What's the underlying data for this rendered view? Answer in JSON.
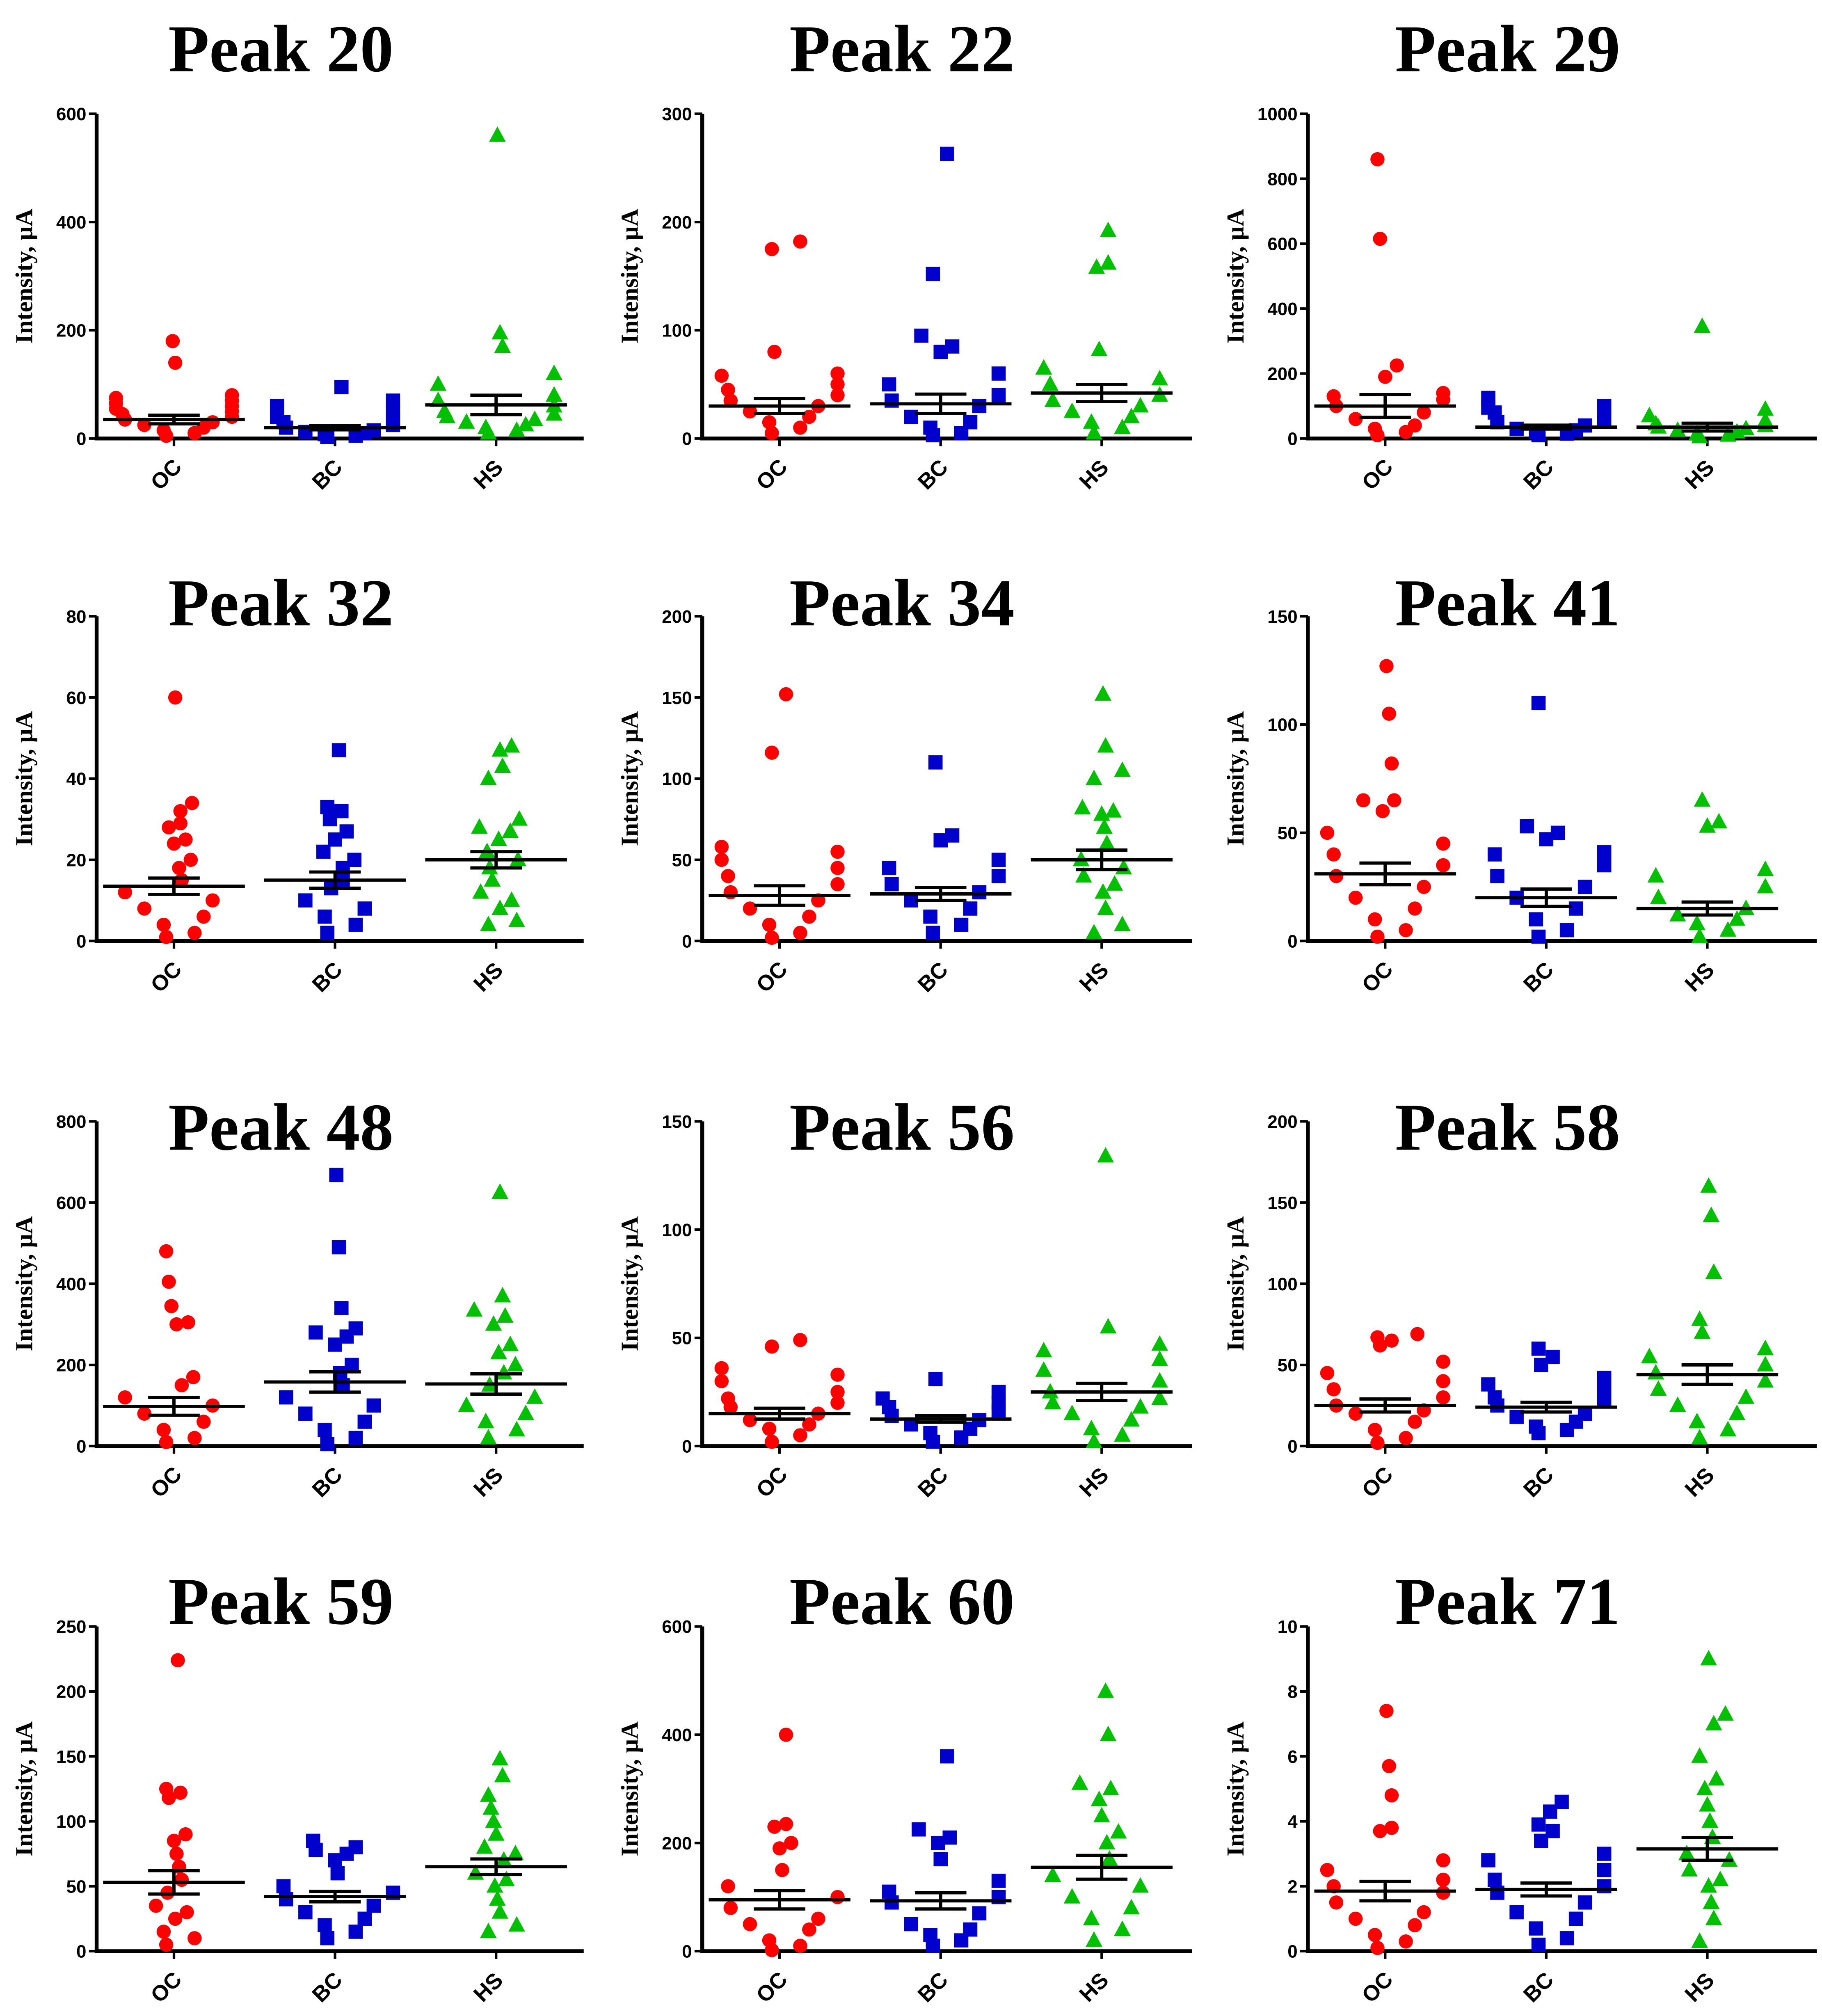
{
  "colors": {
    "OC": "#ff0000",
    "BC": "#0000cc",
    "HS": "#00c000"
  },
  "chart_data": [
    {
      "type": "scatter",
      "title": "Peak 20",
      "ylabel": "Intensity, μA",
      "categories": [
        "OC",
        "BC",
        "HS"
      ],
      "ylim": [
        0,
        600
      ],
      "yticks": [
        0,
        200,
        400,
        600
      ],
      "series": [
        {
          "name": "OC",
          "marker": "circle",
          "mean": 35,
          "sem": 8,
          "values": [
            180,
            140,
            80,
            75,
            70,
            65,
            60,
            55,
            50,
            45,
            40,
            35,
            30,
            25,
            20,
            15,
            10,
            5
          ]
        },
        {
          "name": "BC",
          "marker": "square",
          "mean": 20,
          "sem": 4,
          "values": [
            95,
            70,
            60,
            50,
            40,
            35,
            30,
            25,
            20,
            15,
            12,
            10,
            8,
            5,
            3
          ]
        },
        {
          "name": "HS",
          "marker": "triangle",
          "mean": 62,
          "sem": 18,
          "values": [
            560,
            195,
            170,
            120,
            100,
            80,
            70,
            60,
            50,
            45,
            40,
            35,
            30,
            25,
            20,
            15,
            10
          ]
        }
      ]
    },
    {
      "type": "scatter",
      "title": "Peak 22",
      "ylabel": "Intensity, μA",
      "categories": [
        "OC",
        "BC",
        "HS"
      ],
      "ylim": [
        0,
        300
      ],
      "yticks": [
        0,
        100,
        200,
        300
      ],
      "series": [
        {
          "name": "OC",
          "marker": "circle",
          "mean": 30,
          "sem": 7,
          "values": [
            182,
            175,
            80,
            60,
            58,
            50,
            45,
            40,
            35,
            30,
            25,
            20,
            15,
            10,
            5
          ]
        },
        {
          "name": "BC",
          "marker": "square",
          "mean": 32,
          "sem": 9,
          "values": [
            263,
            152,
            95,
            85,
            80,
            60,
            50,
            40,
            35,
            30,
            20,
            15,
            10,
            5,
            3
          ]
        },
        {
          "name": "HS",
          "marker": "triangle",
          "mean": 42,
          "sem": 8,
          "values": [
            192,
            162,
            158,
            82,
            65,
            55,
            50,
            40,
            35,
            30,
            25,
            20,
            15,
            10,
            5
          ]
        }
      ]
    },
    {
      "type": "scatter",
      "title": "Peak 29",
      "ylabel": "Intensity, μA",
      "categories": [
        "OC",
        "BC",
        "HS"
      ],
      "ylim": [
        0,
        1000
      ],
      "yticks": [
        0,
        200,
        400,
        600,
        800,
        1000
      ],
      "series": [
        {
          "name": "OC",
          "marker": "circle",
          "mean": 100,
          "sem": 35,
          "values": [
            860,
            615,
            225,
            190,
            140,
            130,
            120,
            100,
            80,
            60,
            40,
            30,
            20,
            10
          ]
        },
        {
          "name": "BC",
          "marker": "square",
          "mean": 35,
          "sem": 6,
          "values": [
            125,
            100,
            95,
            90,
            80,
            60,
            50,
            40,
            30,
            25,
            20,
            15,
            10
          ]
        },
        {
          "name": "HS",
          "marker": "triangle",
          "mean": 35,
          "sem": 12,
          "values": [
            345,
            90,
            70,
            55,
            45,
            40,
            35,
            30,
            25,
            20,
            15,
            10,
            5
          ]
        }
      ]
    },
    {
      "type": "scatter",
      "title": "Peak 32",
      "ylabel": "Intensity, μA",
      "categories": [
        "OC",
        "BC",
        "HS"
      ],
      "ylim": [
        0,
        80
      ],
      "yticks": [
        0,
        20,
        40,
        60,
        80
      ],
      "series": [
        {
          "name": "OC",
          "marker": "circle",
          "mean": 13.5,
          "sem": 2,
          "values": [
            60,
            34,
            32,
            29,
            28,
            25,
            24,
            20,
            18,
            15,
            12,
            10,
            8,
            6,
            4,
            2,
            1
          ]
        },
        {
          "name": "BC",
          "marker": "square",
          "mean": 15,
          "sem": 2,
          "values": [
            47,
            33,
            32,
            30,
            27,
            25,
            22,
            20,
            18,
            15,
            13,
            10,
            8,
            6,
            4,
            2
          ]
        },
        {
          "name": "HS",
          "marker": "triangle",
          "mean": 20,
          "sem": 2,
          "values": [
            48,
            47,
            43,
            40,
            30,
            28,
            27,
            25,
            22,
            20,
            18,
            15,
            12,
            10,
            8,
            5,
            4
          ]
        }
      ]
    },
    {
      "type": "scatter",
      "title": "Peak 34",
      "ylabel": "Intensity, μA",
      "categories": [
        "OC",
        "BC",
        "HS"
      ],
      "ylim": [
        0,
        200
      ],
      "yticks": [
        0,
        50,
        100,
        150,
        200
      ],
      "series": [
        {
          "name": "OC",
          "marker": "circle",
          "mean": 28,
          "sem": 6,
          "values": [
            152,
            116,
            58,
            55,
            50,
            45,
            40,
            35,
            30,
            25,
            20,
            15,
            10,
            5,
            2
          ]
        },
        {
          "name": "BC",
          "marker": "square",
          "mean": 29,
          "sem": 4,
          "values": [
            110,
            65,
            62,
            50,
            45,
            40,
            35,
            30,
            25,
            20,
            15,
            10,
            5
          ]
        },
        {
          "name": "HS",
          "marker": "triangle",
          "mean": 50,
          "sem": 6,
          "values": [
            152,
            120,
            105,
            100,
            82,
            80,
            78,
            70,
            60,
            50,
            45,
            40,
            35,
            30,
            20,
            10,
            5
          ]
        }
      ]
    },
    {
      "type": "scatter",
      "title": "Peak 41",
      "ylabel": "Intensity, μA",
      "categories": [
        "OC",
        "BC",
        "HS"
      ],
      "ylim": [
        0,
        150
      ],
      "yticks": [
        0,
        50,
        100,
        150
      ],
      "series": [
        {
          "name": "OC",
          "marker": "circle",
          "mean": 31,
          "sem": 5,
          "values": [
            127,
            105,
            82,
            65,
            65,
            60,
            50,
            45,
            40,
            35,
            30,
            25,
            20,
            15,
            10,
            5,
            2
          ]
        },
        {
          "name": "BC",
          "marker": "square",
          "mean": 20,
          "sem": 4,
          "values": [
            110,
            53,
            50,
            47,
            41,
            40,
            35,
            30,
            25,
            20,
            15,
            10,
            5,
            2
          ]
        },
        {
          "name": "HS",
          "marker": "triangle",
          "mean": 15,
          "sem": 3,
          "values": [
            65,
            55,
            53,
            33,
            30,
            25,
            20,
            15,
            12,
            10,
            8,
            5,
            2
          ]
        }
      ]
    },
    {
      "type": "scatter",
      "title": "Peak 48",
      "ylabel": "Intensity, μA",
      "categories": [
        "OC",
        "BC",
        "HS"
      ],
      "ylim": [
        0,
        800
      ],
      "yticks": [
        0,
        200,
        400,
        600,
        800
      ],
      "series": [
        {
          "name": "OC",
          "marker": "circle",
          "mean": 98,
          "sem": 22,
          "values": [
            480,
            405,
            345,
            305,
            300,
            170,
            150,
            120,
            100,
            80,
            60,
            40,
            20,
            10
          ]
        },
        {
          "name": "BC",
          "marker": "square",
          "mean": 158,
          "sem": 25,
          "values": [
            668,
            490,
            340,
            290,
            280,
            270,
            250,
            200,
            180,
            150,
            120,
            100,
            80,
            60,
            40,
            20,
            5
          ]
        },
        {
          "name": "HS",
          "marker": "triangle",
          "mean": 153,
          "sem": 25,
          "values": [
            625,
            370,
            335,
            320,
            300,
            250,
            230,
            200,
            180,
            150,
            120,
            100,
            80,
            60,
            40,
            20
          ]
        }
      ]
    },
    {
      "type": "scatter",
      "title": "Peak 56",
      "ylabel": "Intensity, μA",
      "categories": [
        "OC",
        "BC",
        "HS"
      ],
      "ylim": [
        0,
        150
      ],
      "yticks": [
        0,
        50,
        100,
        150
      ],
      "series": [
        {
          "name": "OC",
          "marker": "circle",
          "mean": 15,
          "sem": 2.5,
          "values": [
            49,
            46,
            36,
            33,
            30,
            25,
            22,
            20,
            18,
            15,
            12,
            10,
            8,
            5,
            2
          ]
        },
        {
          "name": "BC",
          "marker": "square",
          "mean": 12.5,
          "sem": 1.5,
          "values": [
            31,
            25,
            22,
            20,
            18,
            16,
            14,
            12,
            10,
            8,
            6,
            4,
            2
          ]
        },
        {
          "name": "HS",
          "marker": "triangle",
          "mean": 25,
          "sem": 4,
          "values": [
            134,
            55,
            47,
            44,
            40,
            35,
            30,
            25,
            22,
            20,
            18,
            15,
            12,
            8,
            5,
            2
          ]
        }
      ]
    },
    {
      "type": "scatter",
      "title": "Peak 58",
      "ylabel": "Intensity, μA",
      "categories": [
        "OC",
        "BC",
        "HS"
      ],
      "ylim": [
        0,
        200
      ],
      "yticks": [
        0,
        50,
        100,
        150,
        200
      ],
      "series": [
        {
          "name": "OC",
          "marker": "circle",
          "mean": 25,
          "sem": 4,
          "values": [
            69,
            67,
            65,
            62,
            52,
            45,
            40,
            35,
            30,
            25,
            22,
            20,
            15,
            10,
            5,
            2
          ]
        },
        {
          "name": "BC",
          "marker": "square",
          "mean": 24,
          "sem": 3,
          "values": [
            60,
            55,
            50,
            42,
            38,
            35,
            30,
            28,
            25,
            20,
            18,
            15,
            12,
            10,
            8
          ]
        },
        {
          "name": "HS",
          "marker": "triangle",
          "mean": 44,
          "sem": 6,
          "values": [
            160,
            142,
            107,
            78,
            70,
            60,
            55,
            50,
            45,
            40,
            35,
            30,
            25,
            20,
            15,
            10,
            5
          ]
        }
      ]
    },
    {
      "type": "scatter",
      "title": "Peak 59",
      "ylabel": "Intensity, μA",
      "categories": [
        "OC",
        "BC",
        "HS"
      ],
      "ylim": [
        0,
        250
      ],
      "yticks": [
        0,
        50,
        100,
        150,
        200,
        250
      ],
      "series": [
        {
          "name": "OC",
          "marker": "circle",
          "mean": 53,
          "sem": 9,
          "values": [
            224,
            125,
            122,
            118,
            90,
            85,
            75,
            65,
            55,
            45,
            35,
            30,
            25,
            15,
            10,
            5
          ]
        },
        {
          "name": "BC",
          "marker": "square",
          "mean": 42,
          "sem": 4,
          "values": [
            85,
            80,
            78,
            75,
            70,
            60,
            50,
            45,
            40,
            35,
            30,
            25,
            20,
            15,
            10
          ]
        },
        {
          "name": "HS",
          "marker": "triangle",
          "mean": 65,
          "sem": 6,
          "values": [
            148,
            135,
            120,
            110,
            100,
            90,
            80,
            75,
            70,
            60,
            55,
            50,
            40,
            30,
            20,
            15
          ]
        }
      ]
    },
    {
      "type": "scatter",
      "title": "Peak 60",
      "ylabel": "Intensity, μA",
      "categories": [
        "OC",
        "BC",
        "HS"
      ],
      "ylim": [
        0,
        600
      ],
      "yticks": [
        0,
        200,
        400,
        600
      ],
      "series": [
        {
          "name": "OC",
          "marker": "circle",
          "mean": 95,
          "sem": 17,
          "values": [
            400,
            235,
            230,
            200,
            190,
            150,
            120,
            100,
            80,
            60,
            50,
            40,
            20,
            10,
            2
          ]
        },
        {
          "name": "BC",
          "marker": "square",
          "mean": 93,
          "sem": 15,
          "values": [
            360,
            225,
            210,
            200,
            170,
            130,
            110,
            100,
            90,
            70,
            50,
            40,
            30,
            20,
            10
          ]
        },
        {
          "name": "HS",
          "marker": "triangle",
          "mean": 155,
          "sem": 22,
          "values": [
            480,
            400,
            310,
            300,
            280,
            250,
            220,
            200,
            170,
            140,
            120,
            100,
            80,
            60,
            40,
            20
          ]
        }
      ]
    },
    {
      "type": "scatter",
      "title": "Peak 71",
      "ylabel": "Intensity, μA",
      "categories": [
        "OC",
        "BC",
        "HS"
      ],
      "ylim": [
        0,
        10
      ],
      "yticks": [
        0,
        2,
        4,
        6,
        8,
        10
      ],
      "series": [
        {
          "name": "OC",
          "marker": "circle",
          "mean": 1.85,
          "sem": 0.3,
          "values": [
            7.4,
            5.7,
            4.8,
            3.8,
            3.7,
            2.8,
            2.5,
            2.2,
            2,
            1.8,
            1.5,
            1.2,
            1,
            0.8,
            0.5,
            0.3,
            0.1
          ]
        },
        {
          "name": "BC",
          "marker": "square",
          "mean": 1.9,
          "sem": 0.2,
          "values": [
            4.6,
            4.3,
            3.9,
            3.7,
            3.4,
            3,
            2.8,
            2.5,
            2.2,
            2,
            1.8,
            1.5,
            1.2,
            1,
            0.7,
            0.4,
            0.2
          ]
        },
        {
          "name": "HS",
          "marker": "triangle",
          "mean": 3.15,
          "sem": 0.35,
          "values": [
            9,
            7.3,
            7,
            6,
            5.3,
            5,
            4.5,
            4,
            3.5,
            3,
            2.8,
            2.5,
            2.2,
            2,
            1.5,
            1,
            0.3
          ]
        }
      ]
    }
  ]
}
